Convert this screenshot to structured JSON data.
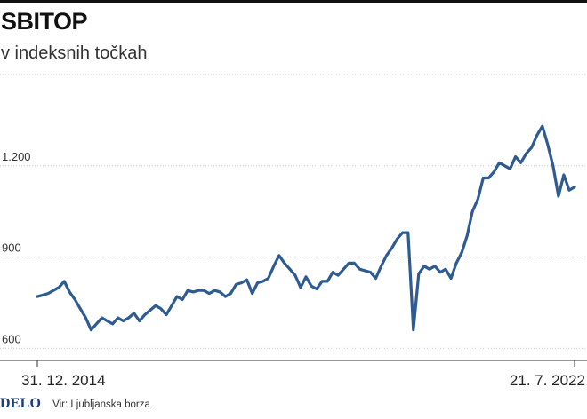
{
  "header": {
    "title": "SBITOP",
    "subtitle": "v indeksnih točkah"
  },
  "footer": {
    "logo": "DELO",
    "source": "Vir: Ljubljanska borza"
  },
  "colors": {
    "line": "#2f5b93",
    "grid": "#c9c9c9",
    "axis": "#333333",
    "logo": "#1f3f73"
  },
  "chart_data": {
    "type": "line",
    "title": "SBITOP",
    "subtitle": "v indeksnih točkah",
    "xlabel": "",
    "ylabel": "",
    "x_tick_labels": [
      "31. 12. 2014",
      "21. 7. 2022"
    ],
    "y_ticks": [
      600,
      900,
      1200
    ],
    "y_tick_labels": [
      "600",
      "900",
      "1.200"
    ],
    "ylim": [
      560,
      1500
    ],
    "grid": true,
    "series": [
      {
        "name": "",
        "x": [
          0,
          0.01,
          0.02,
          0.03,
          0.04,
          0.05,
          0.06,
          0.07,
          0.08,
          0.09,
          0.1,
          0.11,
          0.12,
          0.13,
          0.14,
          0.15,
          0.16,
          0.17,
          0.18,
          0.19,
          0.2,
          0.21,
          0.22,
          0.23,
          0.24,
          0.25,
          0.26,
          0.27,
          0.28,
          0.29,
          0.3,
          0.31,
          0.32,
          0.33,
          0.34,
          0.35,
          0.36,
          0.37,
          0.38,
          0.39,
          0.4,
          0.41,
          0.42,
          0.43,
          0.44,
          0.45,
          0.46,
          0.47,
          0.48,
          0.49,
          0.5,
          0.51,
          0.52,
          0.53,
          0.54,
          0.55,
          0.56,
          0.57,
          0.58,
          0.59,
          0.6,
          0.61,
          0.62,
          0.63,
          0.64,
          0.65,
          0.66,
          0.67,
          0.68,
          0.69,
          0.7,
          0.71,
          0.72,
          0.73,
          0.74,
          0.75,
          0.76,
          0.77,
          0.78,
          0.79,
          0.8,
          0.81,
          0.82,
          0.83,
          0.84,
          0.85,
          0.86,
          0.87,
          0.88,
          0.89,
          0.9,
          0.91,
          0.92,
          0.93,
          0.94,
          0.95,
          0.96,
          0.97,
          0.98,
          0.99,
          1.0
        ],
        "values": [
          770,
          775,
          780,
          790,
          800,
          820,
          785,
          760,
          730,
          700,
          660,
          680,
          700,
          690,
          680,
          700,
          690,
          700,
          715,
          690,
          710,
          725,
          740,
          730,
          710,
          740,
          770,
          760,
          790,
          785,
          790,
          790,
          780,
          790,
          785,
          770,
          780,
          810,
          815,
          825,
          780,
          815,
          820,
          830,
          870,
          905,
          880,
          860,
          840,
          800,
          835,
          805,
          795,
          820,
          820,
          850,
          840,
          860,
          880,
          880,
          860,
          855,
          850,
          830,
          870,
          905,
          930,
          960,
          980,
          980,
          660,
          845,
          870,
          860,
          870,
          850,
          860,
          830,
          880,
          915,
          970,
          1050,
          1090,
          1160,
          1160,
          1180,
          1210,
          1200,
          1190,
          1230,
          1210,
          1240,
          1260,
          1300,
          1330,
          1270,
          1200,
          1100,
          1170,
          1120,
          1130
        ]
      }
    ]
  }
}
